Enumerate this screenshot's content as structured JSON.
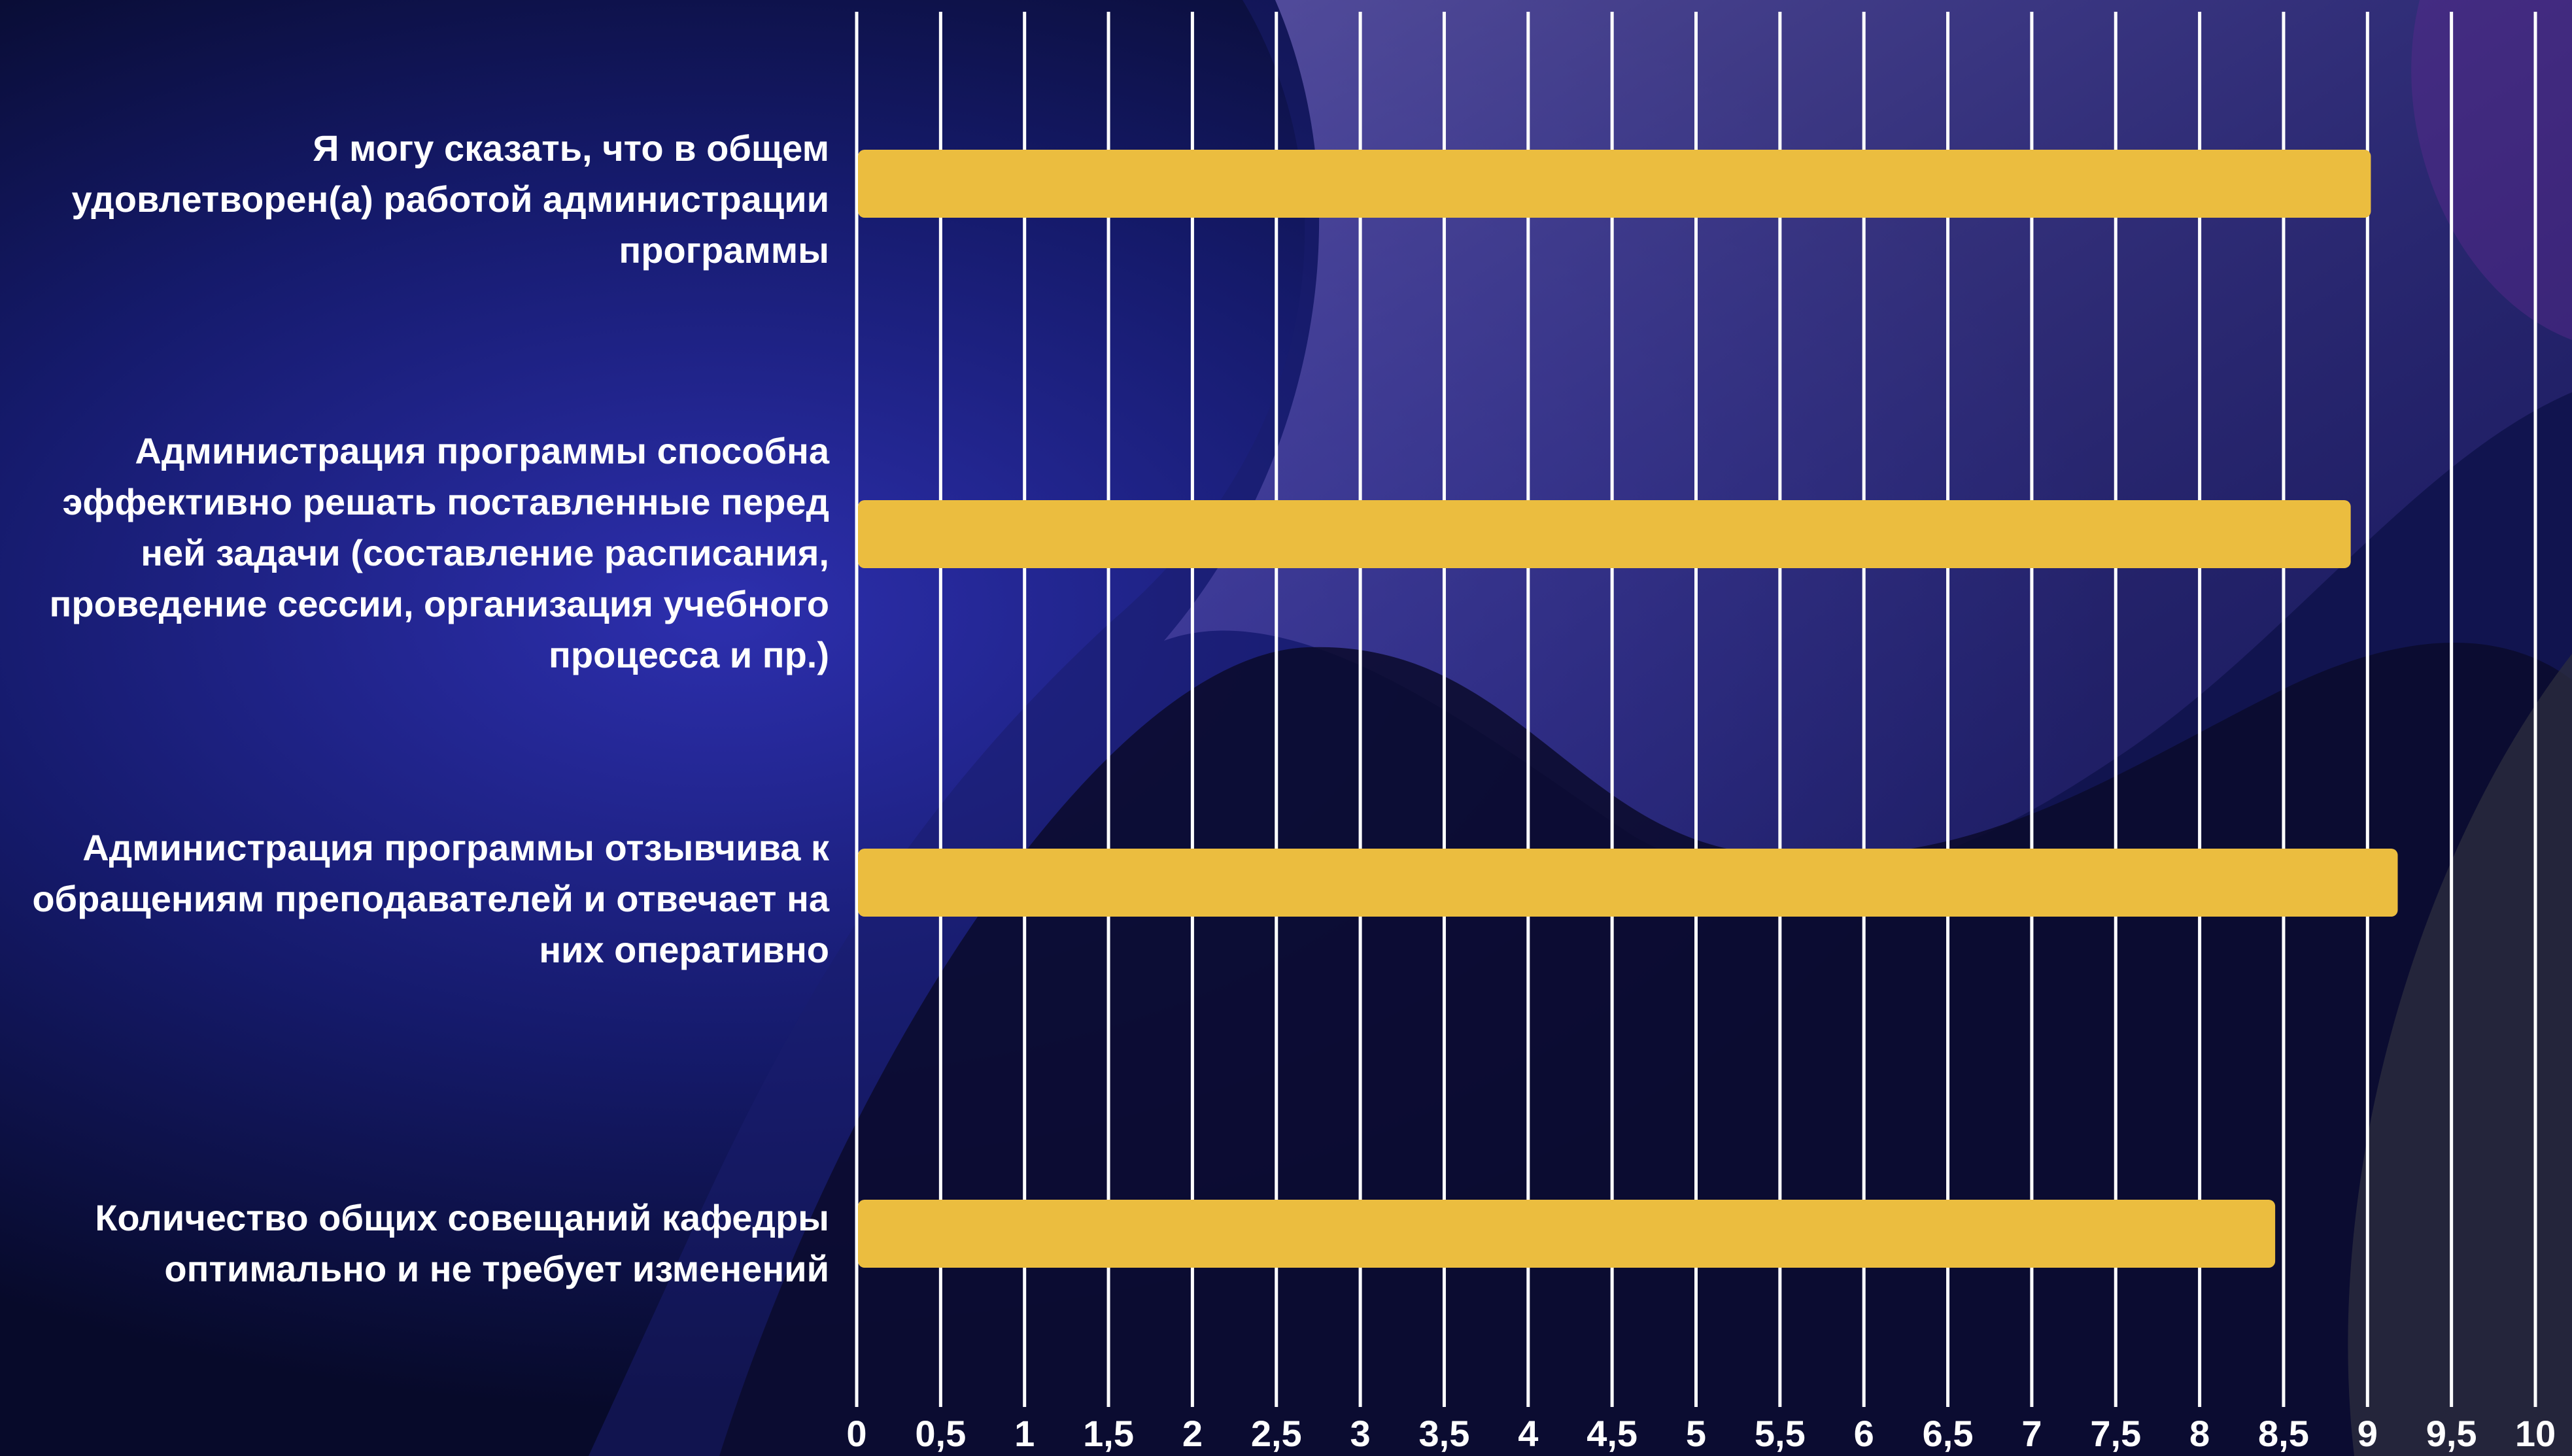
{
  "chart_data": {
    "type": "bar",
    "orientation": "horizontal",
    "title": "",
    "xlabel": "",
    "ylabel": "",
    "categories": [
      "Я могу сказать, что в общем удовлетворен(а) работой администрации программы",
      "Администрация программы способна эффективно решать поставленные перед ней задачи (составление расписания, проведение сессии, организация учебного процесса и пр.)",
      "Администрация программы отзывчива к обращениям преподавателей и отвечает на них оперативно",
      "Количество общих совещаний кафедры оптимально и не требует изменений"
    ],
    "values": [
      9.02,
      8.9,
      9.18,
      8.45
    ],
    "xlim": [
      0,
      10
    ],
    "ticks": [
      "0",
      "0,5",
      "1",
      "1,5",
      "2",
      "2,5",
      "3",
      "3,5",
      "4",
      "4,5",
      "5",
      "5,5",
      "6",
      "6,5",
      "7",
      "7,5",
      "8",
      "8,5",
      "9",
      "9,5",
      "10"
    ],
    "grid": "vertical",
    "legend": "none",
    "colors": {
      "bar": "#EBBD3F",
      "grid": "#FFFFFF",
      "text": "#FFFFFF",
      "background_dark": "#0B0F3A",
      "background_accent": "#2A2FA0"
    }
  }
}
